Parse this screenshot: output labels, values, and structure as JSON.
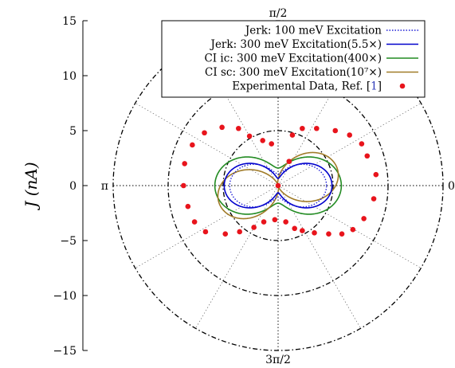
{
  "chart_data": {
    "type": "polar-line-scatter",
    "ylabel": "J (nA)",
    "ylim": [
      -15,
      15
    ],
    "y_ticks": [
      {
        "value": 15,
        "label": "15"
      },
      {
        "value": 10,
        "label": "10"
      },
      {
        "value": 5,
        "label": "5"
      },
      {
        "value": 0,
        "label": "0"
      },
      {
        "value": -5,
        "label": "−5"
      },
      {
        "value": -10,
        "label": "−10"
      },
      {
        "value": -15,
        "label": "−15"
      }
    ],
    "polar": {
      "grid_radii": [
        5,
        10
      ],
      "grid_style": "dash-dot",
      "radial_spoke_deg": [
        30,
        60,
        120,
        150,
        210,
        240,
        300,
        330
      ],
      "angle_labels": [
        {
          "deg": 0,
          "label": "0"
        },
        {
          "deg": 90,
          "label": "π/2"
        },
        {
          "deg": 180,
          "label": "π"
        },
        {
          "deg": 270,
          "label": "3π/2"
        }
      ]
    },
    "legend_position": "top-right",
    "series": [
      {
        "name": "Jerk: 100 meV Excitation",
        "color": "#1f1fd6",
        "style": "dotted",
        "a": 4.4,
        "b": 1.05,
        "shift": 0
      },
      {
        "name": "Jerk: 300 meV Excitation(5.5×)",
        "color": "#0000cc",
        "style": "solid",
        "a": 4.9,
        "b": 0.65,
        "shift": 0
      },
      {
        "name": "CI ic: 300 meV Excitation(400×)",
        "color": "#228b22",
        "style": "solid",
        "a": 5.75,
        "b": 1.6,
        "shift": 0
      },
      {
        "name": "CI sc: 300 meV Excitation(10⁷×)",
        "color": "#a07b28",
        "style": "solid",
        "a": 5.6,
        "b": 0.2,
        "shift": 15
      },
      {
        "name": "Experimental Data, Ref. [1]",
        "color": "#e8141c",
        "style": "markers"
      }
    ],
    "experimental_points": [
      [
        0.0,
        0.0
      ],
      [
        1.0,
        2.2
      ],
      [
        1.3,
        4.6
      ],
      [
        2.2,
        5.2
      ],
      [
        3.5,
        5.2
      ],
      [
        5.2,
        5.0
      ],
      [
        6.5,
        4.6
      ],
      [
        7.6,
        3.8
      ],
      [
        8.1,
        2.7
      ],
      [
        8.9,
        1.0
      ],
      [
        8.7,
        -1.2
      ],
      [
        7.8,
        -3.0
      ],
      [
        6.8,
        -4.0
      ],
      [
        5.8,
        -4.4
      ],
      [
        4.6,
        -4.4
      ],
      [
        3.3,
        -4.3
      ],
      [
        2.2,
        -4.1
      ],
      [
        1.5,
        -3.9
      ],
      [
        0.7,
        -3.3
      ],
      [
        -0.3,
        -3.1
      ],
      [
        -1.3,
        -3.3
      ],
      [
        -2.2,
        -3.8
      ],
      [
        -3.5,
        -4.2
      ],
      [
        -4.8,
        -4.4
      ],
      [
        -6.6,
        -4.2
      ],
      [
        -7.6,
        -3.3
      ],
      [
        -8.2,
        -1.9
      ],
      [
        -8.6,
        0.0
      ],
      [
        -8.5,
        2.0
      ],
      [
        -7.8,
        3.7
      ],
      [
        -6.7,
        4.8
      ],
      [
        -5.1,
        5.3
      ],
      [
        -3.6,
        5.2
      ],
      [
        -2.6,
        4.5
      ],
      [
        -1.4,
        4.1
      ],
      [
        -0.6,
        3.8
      ]
    ],
    "legend": {
      "entries": [
        {
          "label": "Jerk: 100 meV Excitation"
        },
        {
          "label": "Jerk: 300 meV Excitation(5.5×)"
        },
        {
          "label": "CI ic: 300 meV Excitation(400×)"
        },
        {
          "label": "CI sc: 300 meV Excitation(10⁷×)"
        },
        {
          "label": "Experimental Data, Ref. [1]",
          "ref_text": "1"
        }
      ]
    }
  }
}
